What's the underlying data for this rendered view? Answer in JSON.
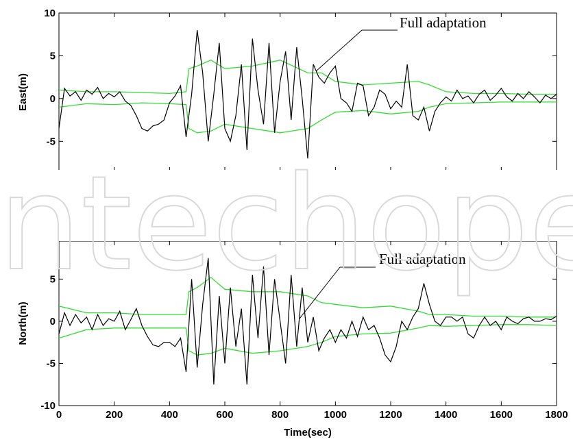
{
  "chart_data": [
    {
      "type": "line",
      "ylabel": "East(m)",
      "xlim": [
        0,
        1800
      ],
      "ylim": [
        -10,
        10
      ],
      "yticks": [
        -5,
        0,
        5,
        10
      ],
      "xticks": [
        0,
        200,
        400,
        600,
        800,
        1000,
        1200,
        1400,
        1600,
        1800
      ],
      "annotation": {
        "text": "Full adaptation",
        "arrow_to": [
          930,
          3.2
        ]
      },
      "series": [
        {
          "color": "#000000",
          "x": [
            0,
            20,
            40,
            60,
            80,
            100,
            120,
            140,
            160,
            180,
            200,
            220,
            240,
            260,
            280,
            300,
            320,
            340,
            360,
            380,
            400,
            420,
            440,
            460,
            480,
            500,
            520,
            540,
            560,
            580,
            600,
            620,
            640,
            660,
            680,
            700,
            720,
            740,
            760,
            780,
            800,
            820,
            840,
            860,
            880,
            900,
            920,
            940,
            960,
            980,
            1000,
            1020,
            1040,
            1060,
            1080,
            1100,
            1120,
            1140,
            1160,
            1180,
            1200,
            1220,
            1240,
            1260,
            1280,
            1300,
            1320,
            1340,
            1360,
            1380,
            1400,
            1420,
            1440,
            1460,
            1480,
            1500,
            1520,
            1540,
            1560,
            1580,
            1600,
            1620,
            1640,
            1660,
            1680,
            1700,
            1720,
            1740,
            1760,
            1780,
            1800
          ],
          "y": [
            -3.5,
            1.2,
            0.3,
            0.8,
            -0.2,
            1.0,
            0.5,
            1.3,
            0.0,
            0.6,
            0.2,
            0.8,
            -0.3,
            -0.8,
            -2.0,
            -3.5,
            -3.8,
            -3.2,
            -3.0,
            -2.5,
            -0.5,
            0.3,
            1.5,
            -4.5,
            0.5,
            8.0,
            3.0,
            -5.0,
            0.5,
            6.5,
            -3.5,
            -5.0,
            -2.0,
            4.0,
            -6.0,
            7.0,
            1.0,
            -3.0,
            6.5,
            -4.0,
            2.0,
            5.5,
            -2.5,
            6.0,
            0.0,
            -7.0,
            4.0,
            2.5,
            1.8,
            3.0,
            3.8,
            0.0,
            -0.5,
            -1.5,
            1.8,
            1.5,
            -2.0,
            -1.0,
            1.0,
            0.5,
            -1.2,
            -0.3,
            -1.0,
            4.0,
            -2.0,
            -2.5,
            -1.0,
            -3.8,
            -1.5,
            -0.5,
            0.2,
            -0.3,
            1.0,
            0.0,
            0.3,
            -0.5,
            0.5,
            1.0,
            -0.2,
            0.4,
            1.2,
            0.2,
            -0.3,
            0.6,
            0.0,
            0.8,
            0.2,
            -0.5,
            0.4,
            0.0,
            0.5
          ]
        },
        {
          "color": "#33dd33",
          "x": [
            0,
            100,
            200,
            300,
            400,
            460,
            470,
            500,
            550,
            600,
            700,
            800,
            900,
            950,
            1000,
            1100,
            1200,
            1300,
            1340,
            1400,
            1500,
            1600,
            1700,
            1800
          ],
          "y": [
            1.0,
            0.8,
            0.8,
            0.7,
            0.6,
            0.8,
            3.5,
            3.8,
            4.5,
            3.5,
            3.8,
            4.5,
            3.0,
            3.0,
            2.0,
            1.6,
            1.8,
            2.0,
            1.6,
            0.8,
            0.6,
            0.6,
            0.5,
            0.5
          ]
        },
        {
          "color": "#33dd33",
          "x": [
            0,
            100,
            200,
            300,
            400,
            460,
            470,
            500,
            550,
            600,
            700,
            800,
            900,
            950,
            1000,
            1100,
            1200,
            1300,
            1340,
            1400,
            1500,
            1600,
            1700,
            1800
          ],
          "y": [
            -1.0,
            -0.6,
            -0.7,
            -0.5,
            -0.6,
            -0.7,
            -3.5,
            -4.0,
            -3.8,
            -3.0,
            -3.5,
            -4.0,
            -3.5,
            -2.5,
            -1.6,
            -1.4,
            -1.8,
            -1.5,
            -1.0,
            -0.6,
            -0.5,
            -0.4,
            -0.4,
            -0.4
          ]
        }
      ]
    },
    {
      "type": "line",
      "ylabel": "North(m)",
      "xlabel": "Time(sec)",
      "xlim": [
        0,
        1800
      ],
      "ylim": [
        -10,
        10
      ],
      "yticks": [
        -10,
        -5,
        0,
        5
      ],
      "xticks": [
        0,
        200,
        400,
        600,
        800,
        1000,
        1200,
        1400,
        1600,
        1800
      ],
      "annotation": {
        "text": "Full adaptation",
        "arrow_to": [
          870,
          0.3
        ]
      },
      "series": [
        {
          "color": "#000000",
          "x": [
            0,
            20,
            40,
            60,
            80,
            100,
            120,
            140,
            160,
            180,
            200,
            220,
            240,
            260,
            280,
            300,
            320,
            340,
            360,
            380,
            400,
            420,
            440,
            460,
            480,
            500,
            520,
            540,
            560,
            580,
            600,
            620,
            640,
            660,
            680,
            700,
            720,
            740,
            760,
            780,
            800,
            820,
            840,
            860,
            880,
            900,
            920,
            940,
            960,
            980,
            1000,
            1020,
            1040,
            1060,
            1080,
            1100,
            1120,
            1140,
            1160,
            1180,
            1200,
            1220,
            1240,
            1260,
            1280,
            1300,
            1320,
            1340,
            1360,
            1380,
            1400,
            1420,
            1440,
            1460,
            1480,
            1500,
            1520,
            1540,
            1560,
            1580,
            1600,
            1620,
            1640,
            1660,
            1680,
            1700,
            1720,
            1740,
            1760,
            1780,
            1800
          ],
          "y": [
            -1.5,
            1.0,
            -0.5,
            0.8,
            -0.2,
            0.5,
            -1.0,
            0.8,
            -0.5,
            0.3,
            0.0,
            1.2,
            -1.0,
            0.2,
            1.5,
            -0.5,
            -1.8,
            -2.8,
            -3.0,
            -2.5,
            -2.5,
            -3.0,
            -2.0,
            -6.0,
            5.0,
            -5.5,
            2.0,
            7.5,
            -7.5,
            3.0,
            -5.0,
            4.0,
            -3.0,
            1.5,
            -7.5,
            5.5,
            -2.0,
            6.5,
            -4.0,
            5.0,
            0.0,
            -5.0,
            5.5,
            -3.0,
            4.0,
            -2.5,
            0.5,
            -3.5,
            -2.0,
            -1.0,
            -2.5,
            -1.0,
            -2.0,
            0.0,
            -1.8,
            0.5,
            -1.0,
            -0.5,
            -2.0,
            -4.0,
            -4.8,
            -3.0,
            0.0,
            -1.0,
            0.5,
            1.5,
            4.5,
            2.0,
            0.0,
            -0.5,
            0.5,
            0.5,
            0.0,
            0.5,
            -1.5,
            -2.0,
            -0.5,
            0.5,
            -0.5,
            0.0,
            -1.0,
            0.5,
            0.0,
            -0.3,
            0.3,
            0.5,
            0.0,
            0.0,
            0.3,
            0.2,
            0.6
          ]
        },
        {
          "color": "#33dd33",
          "x": [
            0,
            100,
            200,
            300,
            400,
            460,
            470,
            500,
            550,
            600,
            700,
            800,
            900,
            950,
            1000,
            1100,
            1200,
            1300,
            1340,
            1400,
            1500,
            1600,
            1700,
            1800
          ],
          "y": [
            1.8,
            1.0,
            1.0,
            0.8,
            0.8,
            0.8,
            3.5,
            4.0,
            5.2,
            3.8,
            3.5,
            3.5,
            3.0,
            2.2,
            2.0,
            1.6,
            1.8,
            1.2,
            0.8,
            0.8,
            0.6,
            0.6,
            0.5,
            0.5
          ]
        },
        {
          "color": "#33dd33",
          "x": [
            0,
            100,
            200,
            300,
            400,
            460,
            470,
            500,
            550,
            600,
            700,
            800,
            900,
            950,
            1000,
            1100,
            1200,
            1300,
            1340,
            1400,
            1500,
            1600,
            1700,
            1800
          ],
          "y": [
            -2.0,
            -1.0,
            -0.8,
            -0.8,
            -0.8,
            -0.8,
            -3.5,
            -4.0,
            -3.8,
            -3.2,
            -3.8,
            -3.5,
            -3.0,
            -2.5,
            -1.8,
            -1.5,
            -1.4,
            -0.8,
            -0.5,
            -0.6,
            -0.5,
            -0.4,
            -0.4,
            -0.5
          ]
        }
      ]
    }
  ]
}
